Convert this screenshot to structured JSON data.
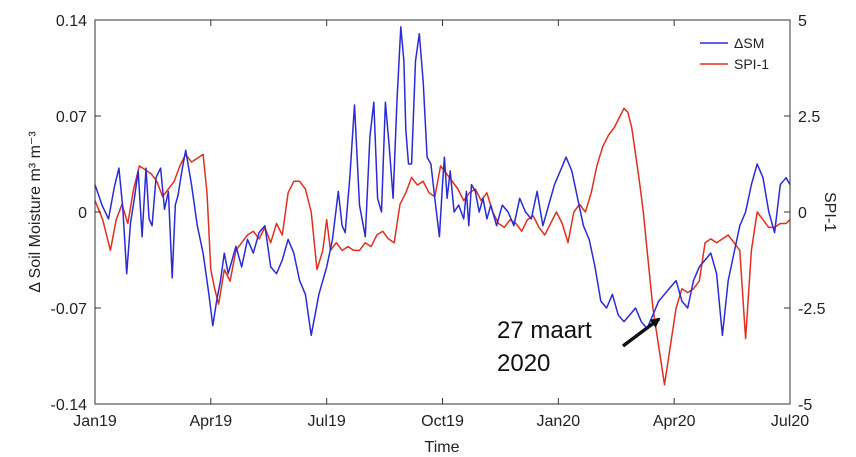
{
  "chart_data": {
    "type": "line",
    "title": "",
    "xlabel": "Time",
    "ylabel_left": "Δ Soil Moisture m³ m⁻³",
    "ylabel_right": "SPI-1",
    "x_ticks": [
      "Jan19",
      "Apr19",
      "Jul19",
      "Oct19",
      "Jan20",
      "Apr20",
      "Jul20"
    ],
    "y_left_ticks": [
      "0.14",
      "0.07",
      "0",
      "-0.07",
      "-0.14"
    ],
    "y_right_ticks": [
      "5",
      "2.5",
      "0",
      "-2.5",
      "-5"
    ],
    "ylim_left": [
      -0.14,
      0.14
    ],
    "ylim_right": [
      -5,
      5
    ],
    "xlim_months": [
      0,
      18
    ],
    "grid": false,
    "legend_position": "top-right",
    "series": [
      {
        "name": "ΔSM",
        "axis": "left",
        "color": "#2b2bd6",
        "x": [
          0.0,
          0.18,
          0.35,
          0.5,
          0.62,
          0.72,
          0.82,
          0.92,
          1.02,
          1.12,
          1.22,
          1.32,
          1.4,
          1.48,
          1.58,
          1.7,
          1.8,
          1.9,
          2.0,
          2.08,
          2.15,
          2.25,
          2.35,
          2.5,
          2.65,
          2.8,
          2.95,
          3.05,
          3.15,
          3.25,
          3.35,
          3.45,
          3.55,
          3.65,
          3.8,
          3.95,
          4.1,
          4.25,
          4.4,
          4.55,
          4.7,
          4.85,
          5.0,
          5.15,
          5.3,
          5.45,
          5.6,
          5.8,
          6.0,
          6.15,
          6.3,
          6.4,
          6.48,
          6.6,
          6.72,
          6.85,
          7.0,
          7.12,
          7.22,
          7.32,
          7.42,
          7.52,
          7.62,
          7.72,
          7.82,
          7.92,
          8.0,
          8.05,
          8.12,
          8.2,
          8.3,
          8.4,
          8.5,
          8.6,
          8.7,
          8.8,
          8.92,
          9.0,
          9.05,
          9.12,
          9.2,
          9.3,
          9.42,
          9.55,
          9.62,
          9.68,
          9.75,
          9.85,
          9.95,
          10.05,
          10.15,
          10.25,
          10.4,
          10.55,
          10.7,
          10.85,
          11.0,
          11.15,
          11.3,
          11.45,
          11.6,
          11.75,
          11.9,
          12.05,
          12.2,
          12.35,
          12.5,
          12.65,
          12.8,
          12.95,
          13.1,
          13.25,
          13.4,
          13.55,
          13.7,
          13.85,
          14.0,
          14.15,
          14.3,
          14.45,
          14.6,
          14.75,
          14.9,
          15.05,
          15.2,
          15.35,
          15.5,
          15.65,
          15.8,
          15.95,
          16.1,
          16.25,
          16.4,
          16.55,
          16.7,
          16.85,
          17.0,
          17.15,
          17.3,
          17.45,
          17.6,
          17.75,
          17.9,
          18.0
        ],
        "values": [
          0.02,
          0.005,
          -0.005,
          0.018,
          0.032,
          0.003,
          -0.045,
          -0.008,
          0.01,
          0.03,
          -0.018,
          0.032,
          -0.005,
          -0.01,
          0.025,
          0.032,
          0.002,
          0.015,
          -0.048,
          0.005,
          0.012,
          0.03,
          0.045,
          0.02,
          -0.01,
          -0.03,
          -0.06,
          -0.083,
          -0.065,
          -0.05,
          -0.03,
          -0.045,
          -0.035,
          -0.025,
          -0.04,
          -0.02,
          -0.03,
          -0.015,
          -0.01,
          -0.04,
          -0.045,
          -0.035,
          -0.02,
          -0.03,
          -0.05,
          -0.06,
          -0.09,
          -0.06,
          -0.04,
          -0.02,
          0.015,
          -0.01,
          -0.015,
          0.025,
          0.078,
          0.005,
          -0.018,
          0.055,
          0.08,
          0.01,
          0.0,
          0.08,
          0.048,
          0.01,
          0.08,
          0.135,
          0.11,
          0.06,
          0.035,
          0.035,
          0.11,
          0.13,
          0.095,
          0.04,
          0.035,
          0.01,
          -0.018,
          0.02,
          0.04,
          0.01,
          0.03,
          0.0,
          0.005,
          -0.005,
          0.015,
          -0.01,
          0.02,
          0.015,
          0.0,
          0.01,
          -0.005,
          0.005,
          -0.01,
          0.005,
          0.0,
          -0.01,
          0.01,
          0.0,
          -0.005,
          0.015,
          -0.01,
          0.005,
          0.02,
          0.03,
          0.04,
          0.03,
          0.01,
          -0.01,
          -0.02,
          -0.04,
          -0.065,
          -0.07,
          -0.06,
          -0.075,
          -0.08,
          -0.075,
          -0.07,
          -0.08,
          -0.085,
          -0.075,
          -0.065,
          -0.06,
          -0.055,
          -0.05,
          -0.065,
          -0.07,
          -0.05,
          -0.04,
          -0.035,
          -0.03,
          -0.045,
          -0.09,
          -0.05,
          -0.03,
          -0.01,
          0.0,
          0.02,
          0.035,
          0.025,
          0.0,
          -0.015,
          0.02,
          0.025,
          0.02
        ]
      },
      {
        "name": "SPI-1",
        "axis": "right",
        "color": "#e0301e",
        "x": [
          0.0,
          0.2,
          0.4,
          0.55,
          0.7,
          0.85,
          1.0,
          1.15,
          1.3,
          1.45,
          1.6,
          1.75,
          1.9,
          2.05,
          2.2,
          2.35,
          2.5,
          2.65,
          2.8,
          2.9,
          3.0,
          3.1,
          3.2,
          3.35,
          3.5,
          3.65,
          3.8,
          3.95,
          4.1,
          4.25,
          4.4,
          4.55,
          4.7,
          4.85,
          5.0,
          5.15,
          5.3,
          5.45,
          5.6,
          5.75,
          5.9,
          6.0,
          6.1,
          6.25,
          6.4,
          6.55,
          6.7,
          6.85,
          7.0,
          7.15,
          7.3,
          7.45,
          7.6,
          7.75,
          7.9,
          8.05,
          8.2,
          8.35,
          8.5,
          8.65,
          8.8,
          8.95,
          9.1,
          9.25,
          9.4,
          9.55,
          9.7,
          9.85,
          10.0,
          10.15,
          10.3,
          10.45,
          10.6,
          10.75,
          10.9,
          11.05,
          11.2,
          11.35,
          11.5,
          11.65,
          11.8,
          11.95,
          12.1,
          12.25,
          12.4,
          12.55,
          12.7,
          12.85,
          13.0,
          13.15,
          13.3,
          13.45,
          13.6,
          13.7,
          13.8,
          13.9,
          14.0,
          14.1,
          14.2,
          14.3,
          14.45,
          14.6,
          14.75,
          14.9,
          15.05,
          15.2,
          15.35,
          15.5,
          15.65,
          15.8,
          15.95,
          16.1,
          16.25,
          16.4,
          16.55,
          16.7,
          16.85,
          17.0,
          17.15,
          17.3,
          17.45,
          17.6,
          17.75,
          17.9,
          18.0
        ],
        "values": [
          0.3,
          -0.2,
          -1.0,
          -0.2,
          0.2,
          -0.3,
          0.6,
          1.2,
          1.1,
          1.0,
          0.8,
          0.4,
          0.6,
          0.8,
          1.2,
          1.5,
          1.3,
          1.4,
          1.5,
          0.5,
          -1.5,
          -2.0,
          -2.4,
          -1.5,
          -1.8,
          -1.0,
          -0.8,
          -0.6,
          -0.5,
          -0.7,
          -0.4,
          -0.8,
          -0.3,
          -0.6,
          0.5,
          0.8,
          0.8,
          0.6,
          0.0,
          -1.5,
          -1.0,
          -0.2,
          -1.0,
          -0.8,
          -1.0,
          -0.9,
          -1.0,
          -1.0,
          -0.8,
          -0.9,
          -0.6,
          -0.5,
          -0.7,
          -0.8,
          0.2,
          0.5,
          0.9,
          0.7,
          0.8,
          0.5,
          0.4,
          1.2,
          1.0,
          0.8,
          0.6,
          0.3,
          0.5,
          0.6,
          0.3,
          0.5,
          0.0,
          -0.3,
          -0.4,
          -0.2,
          -0.3,
          -0.5,
          -0.2,
          -0.1,
          -0.4,
          -0.6,
          -0.3,
          0.0,
          -0.3,
          -0.8,
          0.0,
          0.2,
          0.0,
          0.5,
          1.2,
          1.7,
          2.0,
          2.2,
          2.5,
          2.7,
          2.6,
          2.2,
          1.5,
          0.8,
          0.0,
          -1.0,
          -2.5,
          -3.5,
          -4.5,
          -3.5,
          -2.5,
          -2.0,
          -2.1,
          -2.0,
          -1.8,
          -0.8,
          -0.7,
          -0.8,
          -0.7,
          -0.6,
          -0.8,
          -1.0,
          -3.3,
          -1.0,
          0.0,
          -0.2,
          -0.4,
          -0.4,
          -0.3,
          -0.3,
          -0.2
        ]
      }
    ],
    "annotations": [
      {
        "text_lines": [
          "27 maart",
          "2020"
        ],
        "x": 14.82,
        "y": -0.077,
        "axis": "left"
      }
    ]
  }
}
